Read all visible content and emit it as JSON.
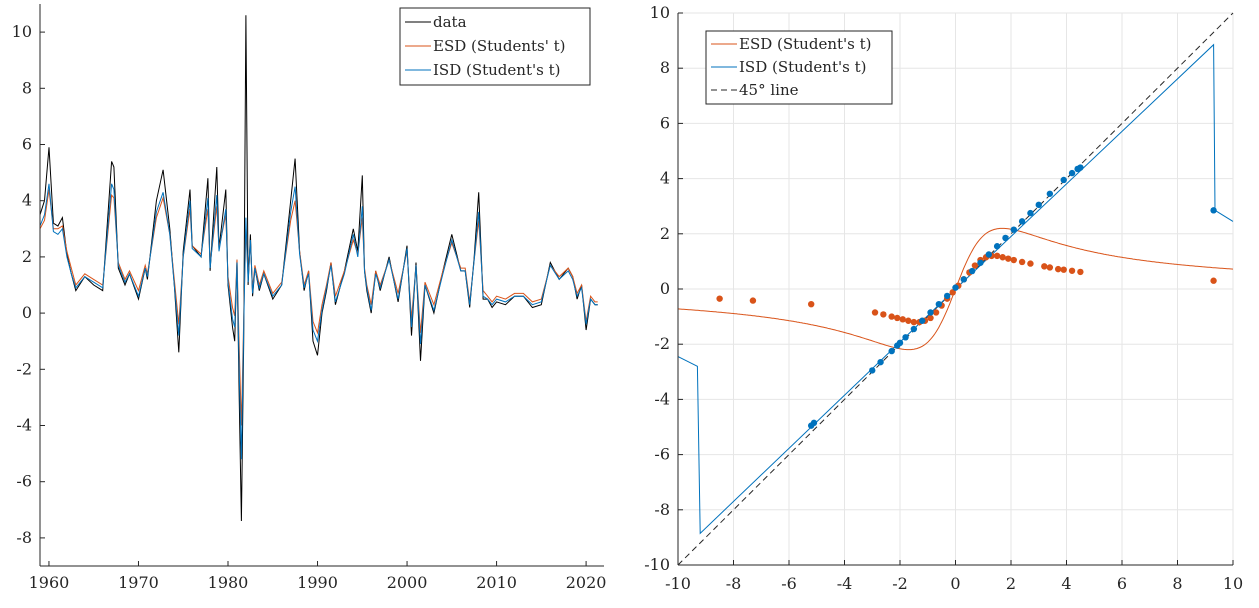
{
  "chart_data": [
    {
      "type": "line",
      "title": "",
      "xlabel": "",
      "ylabel": "",
      "xlim": [
        1959,
        2022
      ],
      "ylim": [
        -9,
        11
      ],
      "grid": false,
      "legend_position": "top-right",
      "x_ticks": [
        "1960",
        "1970",
        "1980",
        "1990",
        "2000",
        "2010",
        "2020"
      ],
      "y_ticks": [
        "-8",
        "-6",
        "-4",
        "-2",
        "0",
        "2",
        "4",
        "6",
        "8",
        "10"
      ],
      "series": [
        {
          "name": "data",
          "color": "#000000",
          "x": [
            1959.0,
            1959.5,
            1960.0,
            1960.5,
            1961.0,
            1961.5,
            1962.0,
            1962.5,
            1963.0,
            1964.0,
            1965.0,
            1966.0,
            1967.0,
            1967.25,
            1967.75,
            1968.5,
            1969.0,
            1970.0,
            1970.75,
            1971.0,
            1972.0,
            1972.75,
            1973.5,
            1974.0,
            1974.5,
            1975.0,
            1975.75,
            1976.0,
            1977.0,
            1977.75,
            1978.0,
            1978.75,
            1979.0,
            1979.75,
            1980.0,
            1980.5,
            1980.75,
            1981.0,
            1981.25,
            1981.5,
            1981.75,
            1982.0,
            1982.25,
            1982.5,
            1982.75,
            1983.0,
            1983.5,
            1984.0,
            1985.0,
            1986.0,
            1987.0,
            1987.5,
            1988.0,
            1988.5,
            1989.0,
            1989.5,
            1990.0,
            1990.5,
            1991.0,
            1991.5,
            1992.0,
            1993.0,
            1994.0,
            1994.5,
            1995.0,
            1995.25,
            1995.5,
            1996.0,
            1996.5,
            1997.0,
            1998.0,
            1999.0,
            2000.0,
            2000.5,
            2001.0,
            2001.5,
            2002.0,
            2003.0,
            2004.0,
            2005.0,
            2006.0,
            2006.5,
            2007.0,
            2007.5,
            2008.0,
            2008.5,
            2009.0,
            2009.5,
            2010.0,
            2011.0,
            2012.0,
            2013.0,
            2014.0,
            2015.0,
            2016.0,
            2017.0,
            2018.0,
            2018.5,
            2019.0,
            2019.5,
            2020.0,
            2020.5,
            2021.0,
            2021.3
          ],
          "values": [
            3.5,
            4.0,
            5.9,
            3.2,
            3.1,
            3.4,
            2.1,
            1.4,
            0.8,
            1.3,
            1.0,
            0.8,
            5.4,
            5.2,
            1.6,
            1.0,
            1.4,
            0.5,
            1.6,
            1.2,
            4.0,
            5.1,
            3.0,
            1.0,
            -1.4,
            2.2,
            4.4,
            2.4,
            2.0,
            4.8,
            1.5,
            5.2,
            2.3,
            4.4,
            1.0,
            -0.5,
            -1.0,
            1.9,
            -3.0,
            -7.4,
            -1.0,
            10.6,
            1.0,
            2.8,
            0.6,
            1.6,
            0.8,
            1.4,
            0.5,
            1.0,
            4.0,
            5.5,
            2.2,
            0.8,
            1.5,
            -1.0,
            -1.5,
            0.0,
            0.8,
            1.8,
            0.3,
            1.5,
            3.0,
            2.2,
            4.9,
            1.5,
            0.8,
            0.0,
            1.5,
            0.8,
            2.0,
            0.4,
            2.4,
            -0.8,
            1.8,
            -1.7,
            1.0,
            0.0,
            1.5,
            2.8,
            1.5,
            1.5,
            0.2,
            2.0,
            4.3,
            0.5,
            0.5,
            0.2,
            0.4,
            0.3,
            0.6,
            0.6,
            0.2,
            0.3,
            1.8,
            1.2,
            1.6,
            1.3,
            0.5,
            1.0,
            -0.6,
            0.5,
            0.3,
            0.3
          ]
        },
        {
          "name": "ESD (Students' t)",
          "color": "#d95319",
          "x": [
            1959.0,
            1959.5,
            1960.0,
            1960.5,
            1961.0,
            1961.5,
            1962.0,
            1962.5,
            1963.0,
            1964.0,
            1965.0,
            1966.0,
            1967.0,
            1967.25,
            1967.75,
            1968.5,
            1969.0,
            1970.0,
            1970.75,
            1971.0,
            1972.0,
            1972.75,
            1973.5,
            1974.0,
            1974.5,
            1975.0,
            1975.75,
            1976.0,
            1977.0,
            1977.75,
            1978.0,
            1978.75,
            1979.0,
            1979.75,
            1980.0,
            1980.5,
            1980.75,
            1981.0,
            1981.25,
            1981.5,
            1981.75,
            1982.0,
            1982.25,
            1982.5,
            1982.75,
            1983.0,
            1983.5,
            1984.0,
            1985.0,
            1986.0,
            1987.0,
            1987.5,
            1988.0,
            1988.5,
            1989.0,
            1989.5,
            1990.0,
            1990.5,
            1991.0,
            1991.5,
            1992.0,
            1993.0,
            1994.0,
            1994.5,
            1995.0,
            1995.25,
            1995.5,
            1996.0,
            1996.5,
            1997.0,
            1998.0,
            1999.0,
            2000.0,
            2000.5,
            2001.0,
            2001.5,
            2002.0,
            2003.0,
            2004.0,
            2005.0,
            2006.0,
            2006.5,
            2007.0,
            2007.5,
            2008.0,
            2008.5,
            2009.0,
            2009.5,
            2010.0,
            2011.0,
            2012.0,
            2013.0,
            2014.0,
            2015.0,
            2016.0,
            2017.0,
            2018.0,
            2018.5,
            2019.0,
            2019.5,
            2020.0,
            2020.5,
            2021.0,
            2021.3
          ],
          "values": [
            3.0,
            3.3,
            4.4,
            3.0,
            3.0,
            3.1,
            2.2,
            1.6,
            1.0,
            1.4,
            1.2,
            1.0,
            4.2,
            4.1,
            1.8,
            1.2,
            1.5,
            0.8,
            1.7,
            1.4,
            3.4,
            4.1,
            2.8,
            1.2,
            -0.4,
            2.0,
            3.7,
            2.4,
            2.1,
            3.7,
            1.7,
            3.8,
            2.3,
            3.5,
            1.3,
            0.2,
            -0.1,
            1.9,
            -1.2,
            -4.0,
            -0.2,
            3.0,
            1.3,
            2.5,
            0.9,
            1.7,
            1.0,
            1.5,
            0.7,
            1.1,
            3.3,
            4.0,
            2.2,
            1.0,
            1.5,
            -0.3,
            -0.7,
            0.3,
            1.0,
            1.8,
            0.6,
            1.5,
            2.6,
            2.1,
            3.4,
            1.6,
            1.0,
            0.3,
            1.5,
            1.0,
            1.9,
            0.7,
            2.2,
            -0.2,
            1.7,
            -0.7,
            1.1,
            0.3,
            1.5,
            2.5,
            1.6,
            1.6,
            0.4,
            1.9,
            3.3,
            0.8,
            0.6,
            0.4,
            0.6,
            0.5,
            0.7,
            0.7,
            0.4,
            0.5,
            1.7,
            1.3,
            1.6,
            1.3,
            0.7,
            1.0,
            -0.3,
            0.6,
            0.4,
            0.4
          ]
        },
        {
          "name": "ISD (Student's t)",
          "color": "#0072bd",
          "x": [
            1959.0,
            1959.5,
            1960.0,
            1960.5,
            1961.0,
            1961.5,
            1962.0,
            1962.5,
            1963.0,
            1964.0,
            1965.0,
            1966.0,
            1967.0,
            1967.25,
            1967.75,
            1968.5,
            1969.0,
            1970.0,
            1970.75,
            1971.0,
            1972.0,
            1972.75,
            1973.5,
            1974.0,
            1974.5,
            1975.0,
            1975.75,
            1976.0,
            1977.0,
            1977.75,
            1978.0,
            1978.75,
            1979.0,
            1979.75,
            1980.0,
            1980.5,
            1980.75,
            1981.0,
            1981.25,
            1981.5,
            1981.75,
            1982.0,
            1982.25,
            1982.5,
            1982.75,
            1983.0,
            1983.5,
            1984.0,
            1985.0,
            1986.0,
            1987.0,
            1987.5,
            1988.0,
            1988.5,
            1989.0,
            1989.5,
            1990.0,
            1990.5,
            1991.0,
            1991.5,
            1992.0,
            1993.0,
            1994.0,
            1994.5,
            1995.0,
            1995.25,
            1995.5,
            1996.0,
            1996.5,
            1997.0,
            1998.0,
            1999.0,
            2000.0,
            2000.5,
            2001.0,
            2001.5,
            2002.0,
            2003.0,
            2004.0,
            2005.0,
            2006.0,
            2006.5,
            2007.0,
            2007.5,
            2008.0,
            2008.5,
            2009.0,
            2009.5,
            2010.0,
            2011.0,
            2012.0,
            2013.0,
            2014.0,
            2015.0,
            2016.0,
            2017.0,
            2018.0,
            2018.5,
            2019.0,
            2019.5,
            2020.0,
            2020.5,
            2021.0,
            2021.3
          ],
          "values": [
            3.1,
            3.5,
            4.6,
            2.9,
            2.8,
            3.0,
            2.0,
            1.4,
            0.9,
            1.3,
            1.1,
            0.9,
            4.6,
            4.4,
            1.7,
            1.1,
            1.4,
            0.6,
            1.6,
            1.3,
            3.6,
            4.3,
            2.8,
            1.0,
            -0.8,
            2.0,
            4.0,
            2.3,
            2.0,
            4.1,
            1.6,
            4.2,
            2.2,
            3.7,
            1.1,
            -0.2,
            -0.5,
            1.8,
            -2.0,
            -5.2,
            -0.5,
            3.4,
            1.1,
            2.6,
            0.7,
            1.6,
            0.9,
            1.4,
            0.6,
            1.0,
            3.6,
            4.5,
            2.1,
            0.9,
            1.4,
            -0.6,
            -1.0,
            0.1,
            0.9,
            1.7,
            0.4,
            1.4,
            2.8,
            2.0,
            3.8,
            1.5,
            0.9,
            0.1,
            1.4,
            0.9,
            1.9,
            0.5,
            2.3,
            -0.5,
            1.7,
            -1.1,
            1.0,
            0.1,
            1.4,
            2.6,
            1.5,
            1.5,
            0.3,
            1.9,
            3.6,
            0.6,
            0.5,
            0.3,
            0.5,
            0.4,
            0.6,
            0.6,
            0.3,
            0.4,
            1.7,
            1.2,
            1.5,
            1.2,
            0.6,
            0.9,
            -0.4,
            0.5,
            0.3,
            0.3
          ]
        }
      ]
    },
    {
      "type": "line",
      "title": "",
      "xlabel": "",
      "ylabel": "",
      "xlim": [
        -10,
        10
      ],
      "ylim": [
        -10,
        10
      ],
      "grid": true,
      "legend_position": "top-left",
      "x_ticks": [
        "-10",
        "-8",
        "-6",
        "-4",
        "-2",
        "0",
        "2",
        "4",
        "6",
        "8",
        "10"
      ],
      "y_ticks": [
        "-10",
        "-8",
        "-6",
        "-4",
        "-2",
        "0",
        "2",
        "4",
        "6",
        "8",
        "10"
      ],
      "series": [
        {
          "name": "ESD (Student's t)",
          "color": "#d95319",
          "marker_x": [
            -8.5,
            -7.3,
            -5.2,
            -2.9,
            -2.6,
            -2.3,
            -2.1,
            -1.9,
            -1.7,
            -1.5,
            -1.3,
            -1.1,
            -0.9,
            -0.7,
            -0.5,
            -0.3,
            -0.1,
            0.1,
            0.3,
            0.5,
            0.7,
            0.9,
            1.1,
            1.3,
            1.5,
            1.7,
            1.9,
            2.1,
            2.4,
            2.7,
            3.2,
            3.4,
            3.7,
            3.9,
            4.2,
            4.5,
            9.3
          ],
          "marker_values": [
            -0.35,
            -0.42,
            -0.55,
            -0.85,
            -0.92,
            -1.0,
            -1.05,
            -1.1,
            -1.15,
            -1.2,
            -1.2,
            -1.15,
            -1.05,
            -0.85,
            -0.6,
            -0.35,
            -0.12,
            0.12,
            0.35,
            0.6,
            0.85,
            1.05,
            1.15,
            1.2,
            1.2,
            1.15,
            1.1,
            1.05,
            0.98,
            0.92,
            0.82,
            0.78,
            0.72,
            0.7,
            0.66,
            0.62,
            0.3
          ]
        },
        {
          "name": "ISD (Student's t)",
          "color": "#0072bd",
          "marker_x": [
            -5.2,
            -5.1,
            -3.0,
            -2.7,
            -2.3,
            -2.1,
            -2.0,
            -1.8,
            -1.5,
            -1.2,
            -0.9,
            -0.6,
            -0.3,
            0.0,
            0.3,
            0.6,
            0.9,
            1.2,
            1.5,
            1.8,
            2.1,
            2.4,
            2.7,
            3.0,
            3.4,
            3.9,
            4.2,
            4.4,
            4.5,
            9.3
          ],
          "marker_values": [
            -4.95,
            -4.85,
            -2.95,
            -2.65,
            -2.25,
            -2.05,
            -1.95,
            -1.75,
            -1.45,
            -1.15,
            -0.85,
            -0.55,
            -0.25,
            0.05,
            0.35,
            0.65,
            0.95,
            1.25,
            1.55,
            1.85,
            2.15,
            2.45,
            2.75,
            3.05,
            3.45,
            3.95,
            4.2,
            4.35,
            4.4,
            2.85
          ]
        },
        {
          "name": "45° line",
          "color": "#262626",
          "x": [
            -10,
            10
          ],
          "values": [
            -10,
            10
          ]
        }
      ]
    }
  ]
}
